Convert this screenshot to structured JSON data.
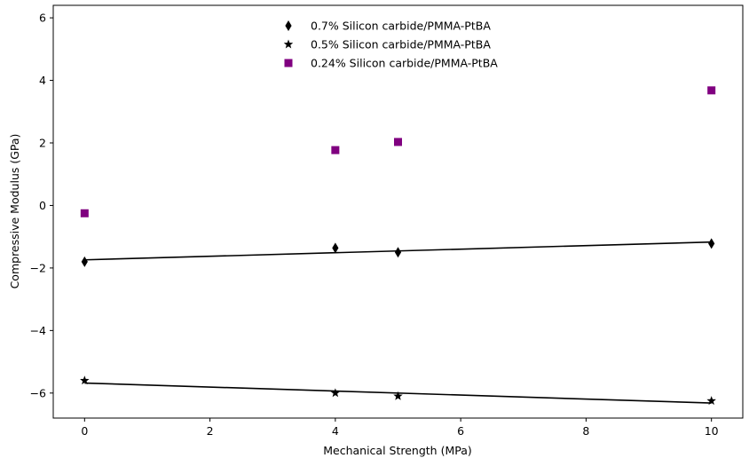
{
  "chart_data": {
    "type": "scatter",
    "title": "",
    "xlabel": "Mechanical Strength (MPa)",
    "ylabel": "Compressive Modulus (GPa)",
    "xlim": [
      -0.5,
      10.5
    ],
    "ylim": [
      -6.8,
      6.4
    ],
    "xticks": [
      0,
      2,
      4,
      6,
      8,
      10
    ],
    "yticks": [
      -6,
      -4,
      -2,
      0,
      2,
      4,
      6
    ],
    "grid": false,
    "legend_position": "top-center",
    "series": [
      {
        "name": "0.7% Silicon carbide/PMMA-PtBA",
        "marker": "thin-diamond",
        "color": "#000000",
        "x": [
          0,
          4,
          5,
          10
        ],
        "y": [
          -1.8,
          -1.36,
          -1.5,
          -1.22
        ],
        "fit": {
          "x": [
            0,
            10
          ],
          "y": [
            -1.74,
            -1.17
          ],
          "color": "#000000"
        }
      },
      {
        "name": "0.5% Silicon carbide/PMMA-PtBA",
        "marker": "star",
        "color": "#000000",
        "x": [
          0,
          4,
          5,
          10
        ],
        "y": [
          -5.6,
          -6.0,
          -6.1,
          -6.25
        ],
        "fit": {
          "x": [
            0,
            10
          ],
          "y": [
            -5.68,
            -6.32
          ],
          "color": "#000000"
        }
      },
      {
        "name": "0.24% Silicon carbide/PMMA-PtBA",
        "marker": "square",
        "color": "#800080",
        "x": [
          0,
          4,
          5,
          10
        ],
        "y": [
          -0.25,
          1.77,
          2.03,
          3.68
        ]
      }
    ]
  }
}
